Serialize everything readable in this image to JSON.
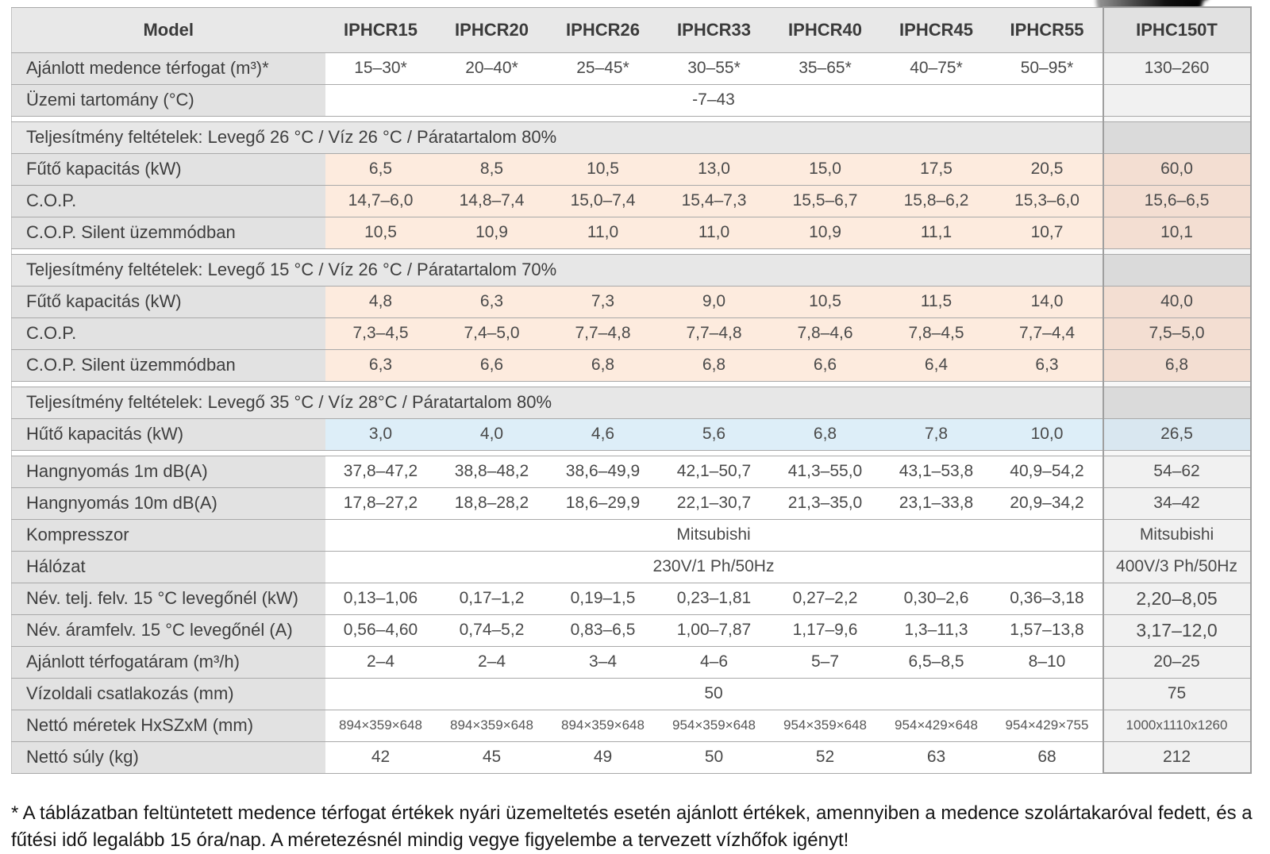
{
  "colors": {
    "row_peach": "#fdebde",
    "row_blue": "#ddeef8",
    "header_gray": "#e8e8e8",
    "label_gray": "#e2e2e2",
    "section_gray": "#e7e7e7",
    "row_border": "#a9a9a9",
    "last_column_border": "#9f9f9f",
    "text": "#3e3e3e"
  },
  "table": {
    "header": [
      "Model",
      "IPHCR15",
      "IPHCR20",
      "IPHCR26",
      "IPHCR33",
      "IPHCR40",
      "IPHCR45",
      "IPHCR55",
      "IPHC150T"
    ],
    "rows": [
      {
        "type": "data",
        "bg": "white",
        "label": "Ajánlott medence térfogat (m³)*",
        "values": [
          "15–30*",
          "20–40*",
          "25–45*",
          "30–55*",
          "35–65*",
          "40–75*",
          "50–95*"
        ],
        "last": "130–260"
      },
      {
        "type": "data",
        "bg": "white",
        "label": "Üzemi tartomány (°C)",
        "merged": "-7–43",
        "last": ""
      },
      {
        "type": "gap"
      },
      {
        "type": "section",
        "label": "Teljesítmény feltételek: Levegő 26 °C / Víz 26 °C / Páratartalom 80%"
      },
      {
        "type": "data",
        "bg": "peach",
        "label": "Fűtő kapacitás (kW)",
        "values": [
          "6,5",
          "8,5",
          "10,5",
          "13,0",
          "15,0",
          "17,5",
          "20,5"
        ],
        "last": "60,0"
      },
      {
        "type": "data",
        "bg": "peach",
        "label": "C.O.P.",
        "values": [
          "14,7–6,0",
          "14,8–7,4",
          "15,0–7,4",
          "15,4–7,3",
          "15,5–6,7",
          "15,8–6,2",
          "15,3–6,0"
        ],
        "last": "15,6–6,5"
      },
      {
        "type": "data",
        "bg": "peach",
        "label": "C.O.P. Silent üzemmódban",
        "values": [
          "10,5",
          "10,9",
          "11,0",
          "11,0",
          "10,9",
          "11,1",
          "10,7"
        ],
        "last": "10,1"
      },
      {
        "type": "gap"
      },
      {
        "type": "section",
        "label": "Teljesítmény feltételek: Levegő 15 °C / Víz 26 °C / Páratartalom 70%"
      },
      {
        "type": "data",
        "bg": "peach",
        "label": "Fűtő kapacitás (kW)",
        "values": [
          "4,8",
          "6,3",
          "7,3",
          "9,0",
          "10,5",
          "11,5",
          "14,0"
        ],
        "last": "40,0"
      },
      {
        "type": "data",
        "bg": "peach",
        "label": "C.O.P.",
        "values": [
          "7,3–4,5",
          "7,4–5,0",
          "7,7–4,8",
          "7,7–4,8",
          "7,8–4,6",
          "7,8–4,5",
          "7,7–4,4"
        ],
        "last": "7,5–5,0"
      },
      {
        "type": "data",
        "bg": "peach",
        "label": "C.O.P. Silent üzemmódban",
        "values": [
          "6,3",
          "6,6",
          "6,8",
          "6,8",
          "6,6",
          "6,4",
          "6,3"
        ],
        "last": "6,8"
      },
      {
        "type": "gap"
      },
      {
        "type": "section",
        "label": "Teljesítmény feltételek: Levegő 35 °C / Víz 28°C / Páratartalom 80%"
      },
      {
        "type": "data",
        "bg": "blue",
        "label": "Hűtő kapacitás (kW)",
        "values": [
          "3,0",
          "4,0",
          "4,6",
          "5,6",
          "6,8",
          "7,8",
          "10,0"
        ],
        "last": "26,5"
      },
      {
        "type": "gap"
      },
      {
        "type": "data",
        "bg": "white",
        "label": "Hangnyomás 1m dB(A)",
        "values": [
          "37,8–47,2",
          "38,8–48,2",
          "38,6–49,9",
          "42,1–50,7",
          "41,3–55,0",
          "43,1–53,8",
          "40,9–54,2"
        ],
        "last": "54–62"
      },
      {
        "type": "data",
        "bg": "white",
        "label": "Hangnyomás 10m dB(A)",
        "values": [
          "17,8–27,2",
          "18,8–28,2",
          "18,6–29,9",
          "22,1–30,7",
          "21,3–35,0",
          "23,1–33,8",
          "20,9–34,2"
        ],
        "last": "34–42"
      },
      {
        "type": "data",
        "bg": "white",
        "label": "Kompresszor",
        "merged": "Mitsubishi",
        "last": "Mitsubishi"
      },
      {
        "type": "data",
        "bg": "white",
        "label": "Hálózat",
        "merged": "230V/1 Ph/50Hz",
        "last": "400V/3 Ph/50Hz"
      },
      {
        "type": "data",
        "bg": "white",
        "label": "Név. telj. felv. 15 °C levegőnél (kW)",
        "values": [
          "0,13–1,06",
          "0,17–1,2",
          "0,19–1,5",
          "0,23–1,81",
          "0,27–2,2",
          "0,30–2,6",
          "0,36–3,18"
        ],
        "last": "2,20–8,05",
        "lastEmph": true
      },
      {
        "type": "data",
        "bg": "white",
        "label": "Név. áramfelv. 15 °C levegőnél (A)",
        "values": [
          "0,56–4,60",
          "0,74–5,2",
          "0,83–6,5",
          "1,00–7,87",
          "1,17–9,6",
          "1,3–11,3",
          "1,57–13,8"
        ],
        "last": "3,17–12,0",
        "lastEmph": true
      },
      {
        "type": "data",
        "bg": "white",
        "label": "Ajánlott térfogatáram (m³/h)",
        "values": [
          "2–4",
          "2–4",
          "3–4",
          "4–6",
          "5–7",
          "6,5–8,5",
          "8–10"
        ],
        "last": "20–25"
      },
      {
        "type": "data",
        "bg": "white",
        "label": "Vízoldali csatlakozás (mm)",
        "merged": "50",
        "last": "75"
      },
      {
        "type": "data",
        "bg": "white",
        "small": true,
        "label": "Nettó méretek HxSZxM (mm)",
        "values": [
          "894×359×648",
          "894×359×648",
          "894×359×648",
          "954×359×648",
          "954×359×648",
          "954×429×648",
          "954×429×755"
        ],
        "last": "1000x1110x1260"
      },
      {
        "type": "data",
        "bg": "white",
        "label": "Nettó súly (kg)",
        "values": [
          "42",
          "45",
          "49",
          "50",
          "52",
          "63",
          "68"
        ],
        "last": "212"
      }
    ]
  },
  "footnote": "* A táblázatban feltüntetett medence térfogat értékek nyári üzemeltetés esetén ajánlott értékek, amennyiben a medence szolártakaróval fedett, és a fűtési idő legalább 15 óra/nap. A méretezésnél mindig vegye figyelembe a tervezett vízhőfok igényt!"
}
